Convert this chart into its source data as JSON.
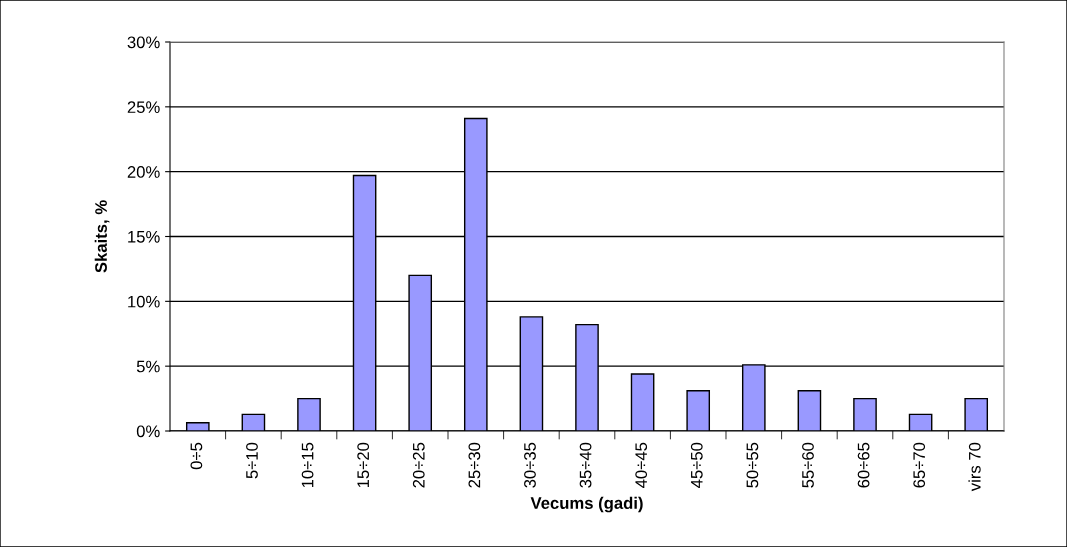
{
  "chart_data": {
    "type": "bar",
    "xlabel": "Vecums (gadi)",
    "ylabel": "Skaits, %",
    "categories": [
      "0÷5",
      "5÷10",
      "10÷15",
      "15÷20",
      "20÷25",
      "25÷30",
      "30÷35",
      "35÷40",
      "40÷45",
      "45÷50",
      "50÷55",
      "55÷60",
      "60÷65",
      "65÷70",
      "virs 70"
    ],
    "values": [
      0.64,
      1.28,
      2.5,
      19.7,
      12.0,
      24.1,
      8.8,
      8.2,
      4.4,
      3.1,
      5.1,
      3.1,
      2.5,
      1.28,
      2.5
    ],
    "color": "#9999ff",
    "ylim": [
      0,
      30
    ],
    "yticks": [
      {
        "value": 0,
        "label": "0%"
      },
      {
        "value": 5,
        "label": "5%"
      },
      {
        "value": 10,
        "label": "10%"
      },
      {
        "value": 15,
        "label": "15%"
      },
      {
        "value": 20,
        "label": "20%"
      },
      {
        "value": 25,
        "label": "25%"
      },
      {
        "value": 30,
        "label": "30%"
      }
    ],
    "grid": "y",
    "legend": false
  }
}
